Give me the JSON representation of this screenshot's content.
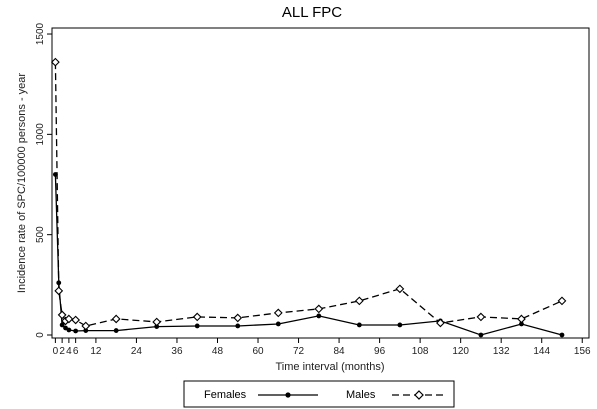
{
  "chart_data": {
    "type": "line",
    "title": "ALL FPC",
    "xlabel": "Time interval (months)",
    "ylabel": "Incidence rate of SPC/100000 persons - year",
    "xlim": [
      -1,
      158
    ],
    "ylim": [
      -15,
      1530
    ],
    "xticks": [
      0,
      2,
      4,
      6,
      12,
      24,
      36,
      48,
      60,
      72,
      84,
      96,
      108,
      120,
      132,
      144,
      156
    ],
    "xtick_labels": [
      "0",
      "2",
      "4",
      "6",
      "12",
      "24",
      "36",
      "48",
      "60",
      "72",
      "84",
      "96",
      "108",
      "120",
      "132",
      "144",
      "156"
    ],
    "yticks": [
      0,
      500,
      1000,
      1500
    ],
    "ytick_labels": [
      "0",
      "500",
      "1000",
      "1500"
    ],
    "grid": false,
    "legend_position": "bottom-center",
    "series": [
      {
        "name": "Females",
        "line_style": "solid",
        "marker": "filled-circle",
        "color": "#000000",
        "x": [
          0,
          1,
          2,
          3,
          4,
          6,
          9,
          18,
          30,
          42,
          54,
          66,
          78,
          90,
          102,
          114,
          126,
          138,
          150
        ],
        "y": [
          800,
          260,
          50,
          35,
          25,
          20,
          22,
          22,
          42,
          45,
          45,
          55,
          95,
          50,
          50,
          70,
          0,
          55,
          0
        ]
      },
      {
        "name": "Males",
        "line_style": "dashed",
        "marker": "open-diamond",
        "color": "#000000",
        "x": [
          0,
          1,
          2,
          3,
          4,
          6,
          9,
          18,
          30,
          42,
          54,
          66,
          78,
          90,
          102,
          114,
          126,
          138,
          150
        ],
        "y": [
          1360,
          220,
          100,
          70,
          80,
          75,
          45,
          80,
          65,
          90,
          85,
          110,
          130,
          170,
          230,
          60,
          90,
          80,
          170
        ]
      }
    ]
  }
}
